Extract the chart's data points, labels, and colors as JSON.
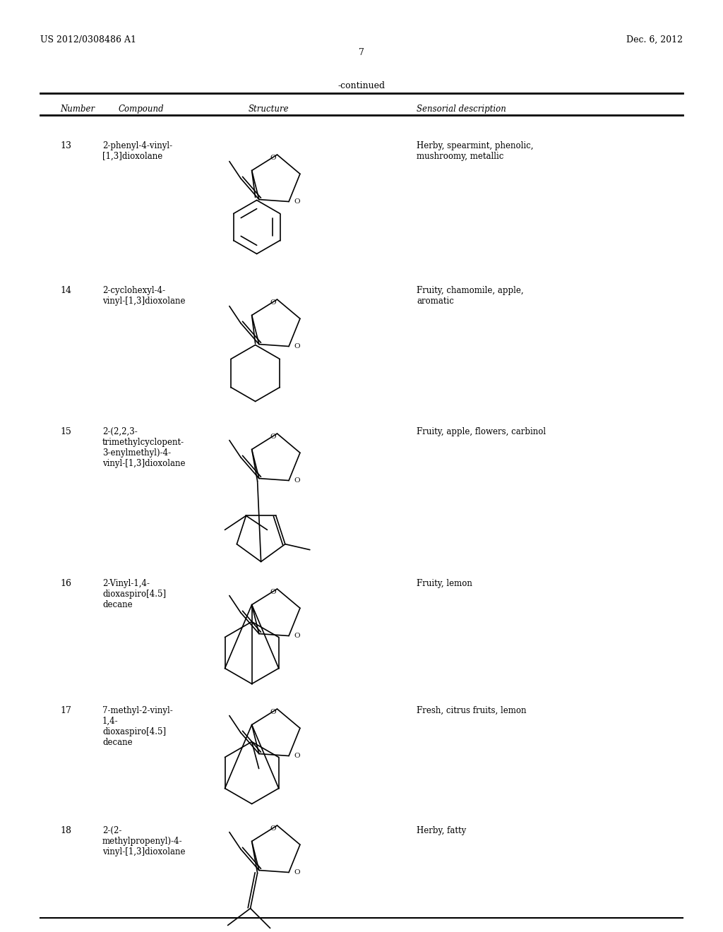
{
  "page_header_left": "US 2012/0308486 A1",
  "page_header_right": "Dec. 6, 2012",
  "page_number": "7",
  "table_title": "-continued",
  "col_headers": [
    "Number",
    "Compound",
    "Structure",
    "Sensorial description"
  ],
  "rows": [
    {
      "number": "13",
      "compound": "2-phenyl-4-vinyl-\n[1,3]dioxolane",
      "sensorial": "Herby, spearmint, phenolic,\nmushroomy, metallic"
    },
    {
      "number": "14",
      "compound": "2-cyclohexyl-4-\nvinyl-[1,3]dioxolane",
      "sensorial": "Fruity, chamomile, apple,\naromatic"
    },
    {
      "number": "15",
      "compound": "2-(2,2,3-\ntrimethylcyclopent-\n3-enylmethyl)-4-\nvinyl-[1,3]dioxolane",
      "sensorial": "Fruity, apple, flowers, carbinol"
    },
    {
      "number": "16",
      "compound": "2-Vinyl-1,4-\ndioxaspiro[4.5]\ndecane",
      "sensorial": "Fruity, lemon"
    },
    {
      "number": "17",
      "compound": "7-methyl-2-vinyl-\n1,4-\ndioxaspiro[4.5]\ndecane",
      "sensorial": "Fresh, citrus fruits, lemon"
    },
    {
      "number": "18",
      "compound": "2-(2-\nmethylpropenyl)-4-\nvinyl-[1,3]dioxolane",
      "sensorial": "Herby, fatty"
    }
  ],
  "bg_color": "#ffffff",
  "text_color": "#000000",
  "line_color": "#000000"
}
